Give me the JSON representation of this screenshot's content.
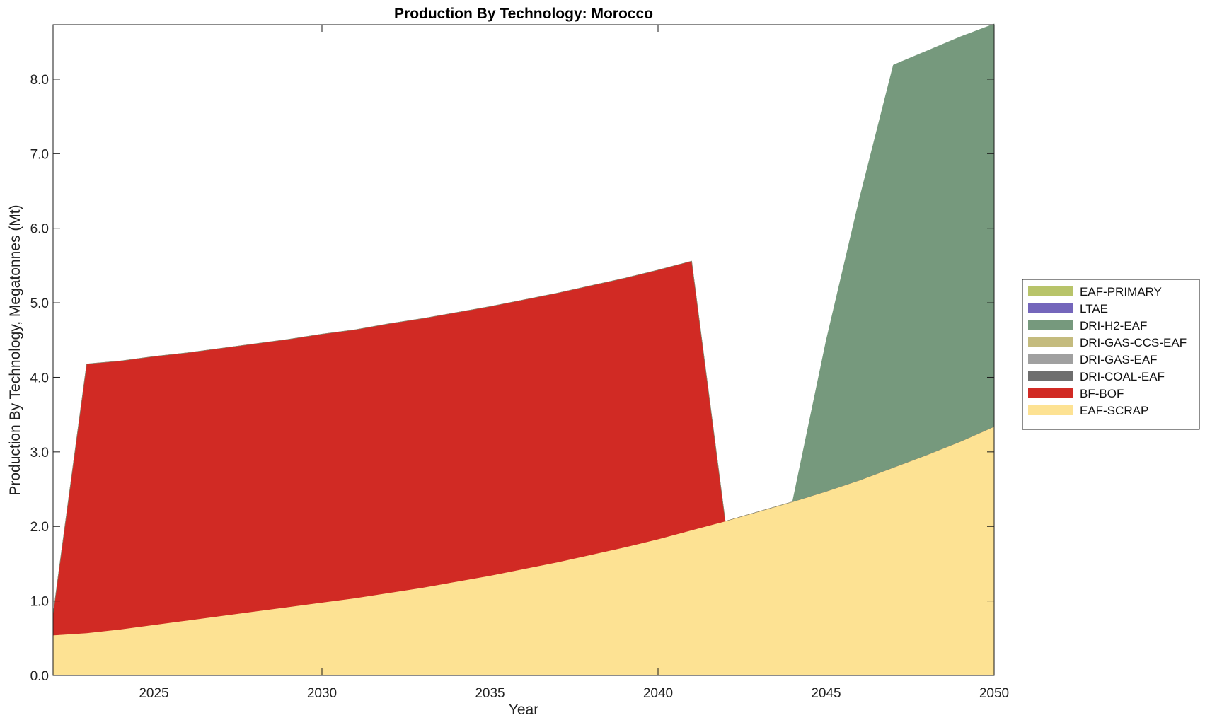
{
  "chart_data": {
    "type": "area",
    "title": "Production By Technology: Morocco",
    "xlabel": "Year",
    "ylabel": "Production By Technology, Megatonnes (Mt)",
    "xlim": [
      2022,
      2050
    ],
    "ylim": [
      0,
      8.73
    ],
    "xticks": [
      2025,
      2030,
      2035,
      2040,
      2045,
      2050
    ],
    "yticks": [
      0,
      1,
      2,
      3,
      4,
      5,
      6,
      7,
      8
    ],
    "ytick_labels": [
      "0.0",
      "1.0",
      "2.0",
      "3.0",
      "4.0",
      "5.0",
      "6.0",
      "7.0",
      "8.0"
    ],
    "grid": false,
    "stacked": true,
    "legend_position": "right",
    "x": [
      2022,
      2023,
      2024,
      2025,
      2026,
      2027,
      2028,
      2029,
      2030,
      2031,
      2032,
      2033,
      2034,
      2035,
      2036,
      2037,
      2038,
      2039,
      2040,
      2041,
      2042,
      2043,
      2044,
      2045,
      2046,
      2047,
      2048,
      2049,
      2050
    ],
    "series": [
      {
        "name": "EAF-SCRAP",
        "color": "#fde293",
        "values": [
          0.54,
          0.57,
          0.62,
          0.68,
          0.74,
          0.8,
          0.86,
          0.92,
          0.98,
          1.04,
          1.11,
          1.18,
          1.26,
          1.34,
          1.43,
          1.52,
          1.62,
          1.72,
          1.83,
          1.95,
          2.07,
          2.2,
          2.33,
          2.47,
          2.62,
          2.79,
          2.96,
          3.14,
          3.34
        ]
      },
      {
        "name": "BF-BOF",
        "color": "#d12a24",
        "values": [
          0.28,
          3.61,
          3.6,
          3.6,
          3.59,
          3.59,
          3.59,
          3.59,
          3.6,
          3.6,
          3.61,
          3.61,
          3.61,
          3.61,
          3.61,
          3.61,
          3.61,
          3.61,
          3.61,
          3.61,
          0,
          0,
          0,
          0,
          0,
          0,
          0,
          0,
          0
        ]
      },
      {
        "name": "DRI-COAL-EAF",
        "color": "#6e6e6e",
        "values": [
          0,
          0,
          0,
          0,
          0,
          0,
          0,
          0,
          0,
          0,
          0,
          0,
          0,
          0,
          0,
          0,
          0,
          0,
          0,
          0,
          0,
          0,
          0,
          0,
          0,
          0,
          0,
          0,
          0
        ]
      },
      {
        "name": "DRI-GAS-EAF",
        "color": "#a0a0a0",
        "values": [
          0,
          0,
          0,
          0,
          0,
          0,
          0,
          0,
          0,
          0,
          0,
          0,
          0,
          0,
          0,
          0,
          0,
          0,
          0,
          0,
          0,
          0,
          0,
          0,
          0,
          0,
          0,
          0,
          0
        ]
      },
      {
        "name": "DRI-GAS-CCS-EAF",
        "color": "#c4bb7e",
        "values": [
          0,
          0,
          0,
          0,
          0,
          0,
          0,
          0,
          0,
          0,
          0,
          0,
          0,
          0,
          0,
          0,
          0,
          0,
          0,
          0,
          0,
          0,
          0,
          0,
          0,
          0,
          0,
          0,
          0
        ]
      },
      {
        "name": "DRI-H2-EAF",
        "color": "#76997d",
        "values": [
          0,
          0,
          0,
          0,
          0,
          0,
          0,
          0,
          0,
          0,
          0,
          0,
          0,
          0,
          0,
          0,
          0,
          0,
          0,
          0,
          0,
          0,
          0,
          2.02,
          3.79,
          5.4,
          5.42,
          5.43,
          5.4
        ]
      },
      {
        "name": "LTAE",
        "color": "#7466bb",
        "values": [
          0,
          0,
          0,
          0,
          0,
          0,
          0,
          0,
          0,
          0,
          0,
          0,
          0,
          0,
          0,
          0,
          0,
          0,
          0,
          0,
          0,
          0,
          0,
          0,
          0,
          0,
          0,
          0,
          0
        ]
      },
      {
        "name": "EAF-PRIMARY",
        "color": "#b8c46a",
        "values": [
          0,
          0,
          0,
          0,
          0,
          0,
          0,
          0,
          0,
          0,
          0,
          0,
          0,
          0,
          0,
          0,
          0,
          0,
          0,
          0,
          0,
          0,
          0,
          0,
          0,
          0,
          0,
          0,
          0
        ]
      }
    ],
    "legend_order": [
      "EAF-PRIMARY",
      "LTAE",
      "DRI-H2-EAF",
      "DRI-GAS-CCS-EAF",
      "DRI-GAS-EAF",
      "DRI-COAL-EAF",
      "BF-BOF",
      "EAF-SCRAP"
    ]
  }
}
